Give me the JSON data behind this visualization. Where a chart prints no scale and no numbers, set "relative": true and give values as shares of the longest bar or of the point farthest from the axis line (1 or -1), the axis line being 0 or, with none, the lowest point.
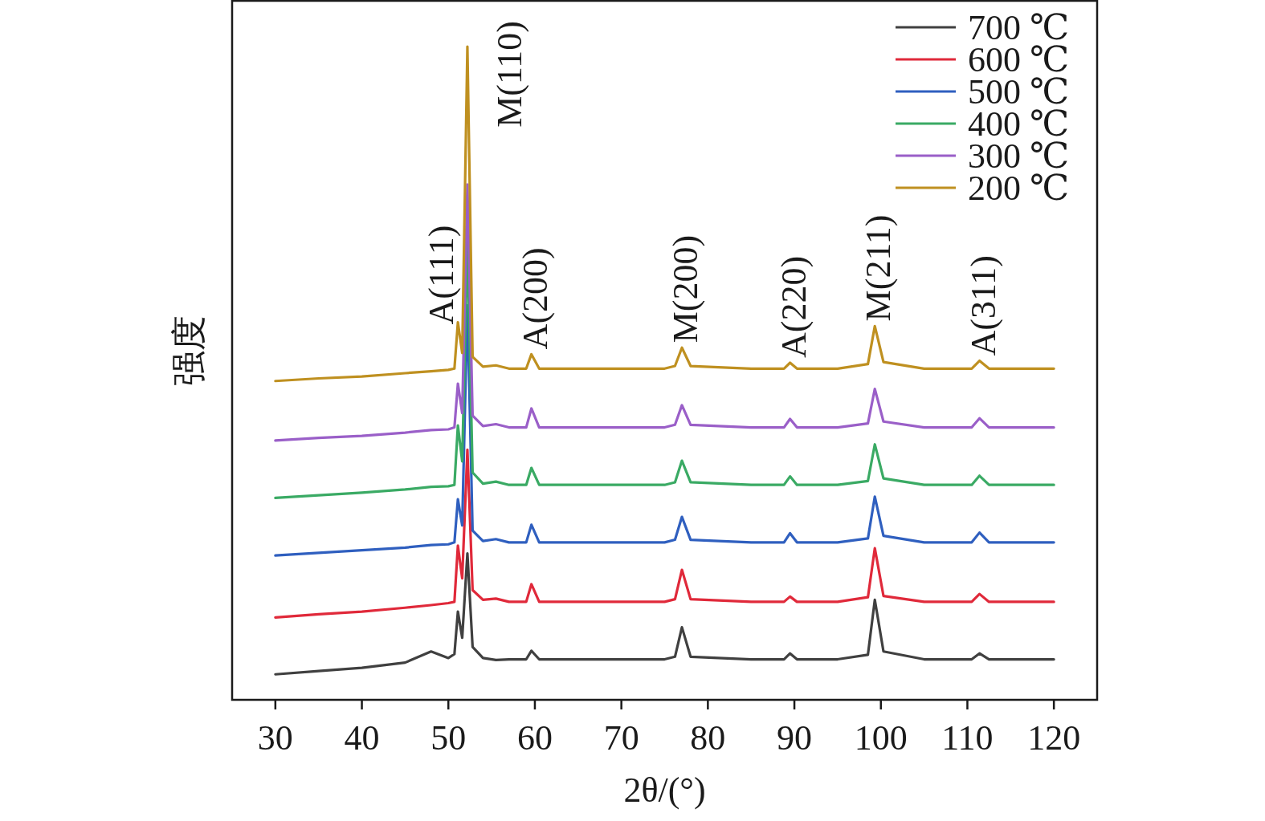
{
  "chart_data": {
    "type": "line",
    "relative": true,
    "xlabel": "2θ/(°)",
    "ylabel": "强度",
    "xlim": [
      25,
      125
    ],
    "xticks": [
      30,
      40,
      50,
      60,
      70,
      80,
      90,
      100,
      110,
      120
    ],
    "tick_labels": "x",
    "legend": "top right",
    "x": [
      30,
      35,
      40,
      45,
      48,
      50,
      50.7,
      51.1,
      51.6,
      52.2,
      52.8,
      54,
      55.5,
      57,
      59,
      59.6,
      60.5,
      65,
      70,
      75,
      76.2,
      77,
      78,
      85,
      88.8,
      89.5,
      90.3,
      95,
      98.5,
      99.3,
      100.3,
      105,
      110.5,
      111.4,
      112.5,
      120
    ],
    "series": [
      {
        "name": "700 ℃",
        "color": "#404040",
        "values": [
          0.039,
          0.044,
          0.049,
          0.057,
          0.074,
          0.064,
          0.07,
          0.135,
          0.095,
          0.224,
          0.081,
          0.064,
          0.061,
          0.062,
          0.062,
          0.075,
          0.062,
          0.062,
          0.062,
          0.062,
          0.066,
          0.111,
          0.066,
          0.062,
          0.062,
          0.071,
          0.062,
          0.062,
          0.069,
          0.153,
          0.074,
          0.062,
          0.062,
          0.071,
          0.062,
          0.062
        ]
      },
      {
        "name": "600 ℃",
        "color": "#e0293a",
        "values": [
          0.126,
          0.131,
          0.135,
          0.141,
          0.145,
          0.148,
          0.15,
          0.236,
          0.186,
          0.383,
          0.168,
          0.153,
          0.155,
          0.15,
          0.15,
          0.177,
          0.15,
          0.15,
          0.15,
          0.15,
          0.154,
          0.199,
          0.154,
          0.15,
          0.15,
          0.158,
          0.15,
          0.15,
          0.157,
          0.232,
          0.159,
          0.15,
          0.15,
          0.162,
          0.15,
          0.15
        ]
      },
      {
        "name": "500 ℃",
        "color": "#2f5fbf",
        "values": [
          0.221,
          0.225,
          0.229,
          0.233,
          0.237,
          0.238,
          0.241,
          0.307,
          0.267,
          0.604,
          0.259,
          0.243,
          0.246,
          0.241,
          0.241,
          0.268,
          0.241,
          0.241,
          0.241,
          0.241,
          0.245,
          0.28,
          0.245,
          0.241,
          0.241,
          0.255,
          0.241,
          0.241,
          0.247,
          0.311,
          0.251,
          0.241,
          0.241,
          0.256,
          0.241,
          0.241
        ]
      },
      {
        "name": "400 ℃",
        "color": "#3aaa64",
        "values": [
          0.309,
          0.313,
          0.317,
          0.322,
          0.326,
          0.327,
          0.329,
          0.42,
          0.365,
          0.703,
          0.348,
          0.331,
          0.334,
          0.329,
          0.329,
          0.355,
          0.329,
          0.329,
          0.329,
          0.329,
          0.333,
          0.366,
          0.333,
          0.329,
          0.329,
          0.342,
          0.329,
          0.329,
          0.335,
          0.391,
          0.339,
          0.329,
          0.329,
          0.343,
          0.329,
          0.329
        ]
      },
      {
        "name": "300 ℃",
        "color": "#9a5fc8",
        "values": [
          0.397,
          0.401,
          0.404,
          0.409,
          0.413,
          0.414,
          0.417,
          0.484,
          0.439,
          0.789,
          0.435,
          0.419,
          0.422,
          0.417,
          0.417,
          0.446,
          0.417,
          0.417,
          0.417,
          0.417,
          0.421,
          0.451,
          0.421,
          0.417,
          0.417,
          0.43,
          0.417,
          0.417,
          0.423,
          0.476,
          0.426,
          0.417,
          0.417,
          0.431,
          0.417,
          0.417
        ]
      },
      {
        "name": "200 ℃",
        "color": "#bf9020",
        "values": [
          0.488,
          0.492,
          0.495,
          0.5,
          0.503,
          0.505,
          0.507,
          0.578,
          0.531,
          1,
          0.525,
          0.51,
          0.512,
          0.507,
          0.507,
          0.529,
          0.507,
          0.507,
          0.507,
          0.507,
          0.511,
          0.539,
          0.511,
          0.507,
          0.507,
          0.516,
          0.507,
          0.507,
          0.514,
          0.572,
          0.517,
          0.507,
          0.507,
          0.519,
          0.507,
          0.507
        ]
      }
    ],
    "annotations": [
      {
        "text": "A(111)",
        "x": 51.1,
        "y": 0.578
      },
      {
        "text": "M(110)",
        "x": 52.2,
        "y": 1
      },
      {
        "text": "A(200)",
        "x": 59.6,
        "y": 0.529
      },
      {
        "text": "M(200)",
        "x": 77,
        "y": 0.539
      },
      {
        "text": "A(220)",
        "x": 89.5,
        "y": 0.516
      },
      {
        "text": "M(211)",
        "x": 99.3,
        "y": 0.572
      },
      {
        "text": "A(311)",
        "x": 111.4,
        "y": 0.519
      }
    ]
  }
}
